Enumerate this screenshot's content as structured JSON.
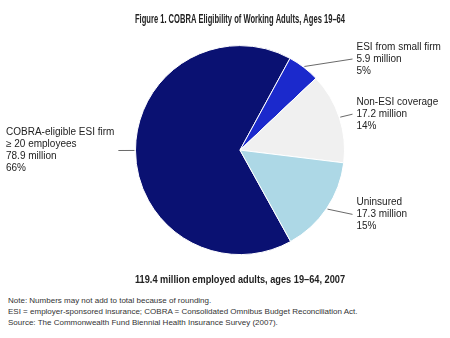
{
  "chart_data": {
    "type": "pie",
    "title": "Figure 1. COBRA Eligibility of Working Adults, Ages 19–64",
    "subtitle": "119.4 million employed adults, ages 19–64, 2007",
    "categories": [
      "COBRA-eligible ESI firm\n≥ 20 employees\n78.9 million\n66%",
      "ESI from small firm\n5.9 million\n5%",
      "Non-ESI coverage\n17.2 million\n14%",
      "Uninsured\n17.3 million\n15%"
    ],
    "values": [
      66,
      5,
      14,
      15
    ],
    "colors": [
      "#0A1172",
      "#1B29CC",
      "#F0F0F0",
      "#ADD8E6"
    ],
    "notes": [
      "Note: Numbers may not add to total because of rounding.",
      "ESI = employer-sponsored insurance; COBRA = Consolidated Omnibus Budget Reconciliation Act.",
      "Source: The Commonwealth Fund Biennial Health Insurance Survey (2007)."
    ]
  }
}
